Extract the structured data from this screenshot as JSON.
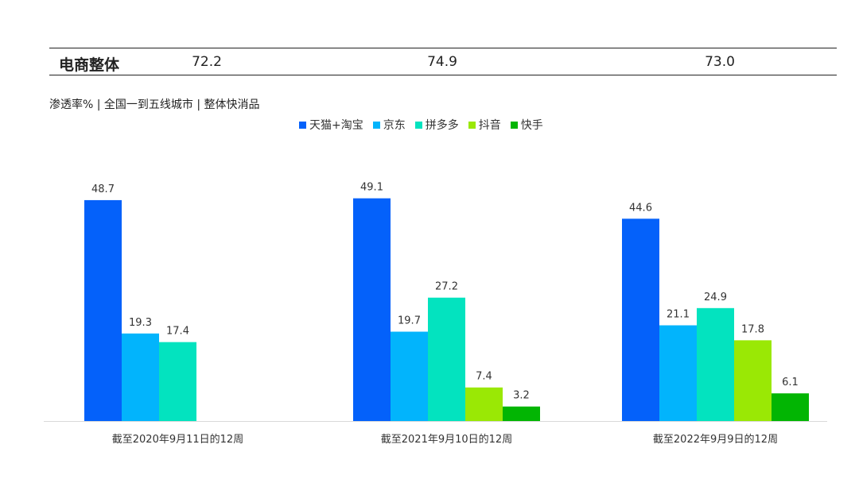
{
  "summary": {
    "label": "电商整体",
    "values": [
      "72.2",
      "74.9",
      "73.0"
    ]
  },
  "subtitle": "渗透率% | 全国一到五线城市 | 整体快消品",
  "chart_data": {
    "type": "bar",
    "categories": [
      "截至2020年9月11日的12周",
      "截至2021年9月10日的12周",
      "截至2022年9月9日的12周"
    ],
    "series": [
      {
        "name": "天猫+淘宝",
        "color": "#0461FA",
        "values": [
          48.7,
          49.1,
          44.6
        ]
      },
      {
        "name": "京东",
        "color": "#02B4FC",
        "values": [
          19.3,
          19.7,
          21.1
        ]
      },
      {
        "name": "拼多多",
        "color": "#03E3BF",
        "values": [
          17.4,
          27.2,
          24.9
        ]
      },
      {
        "name": "抖音",
        "color": "#9AE805",
        "values": [
          null,
          7.4,
          17.8
        ]
      },
      {
        "name": "快手",
        "color": "#02B503",
        "values": [
          null,
          3.2,
          6.1
        ]
      }
    ],
    "ylim": [
      0,
      50
    ],
    "grid": false,
    "legend": "top-center"
  }
}
